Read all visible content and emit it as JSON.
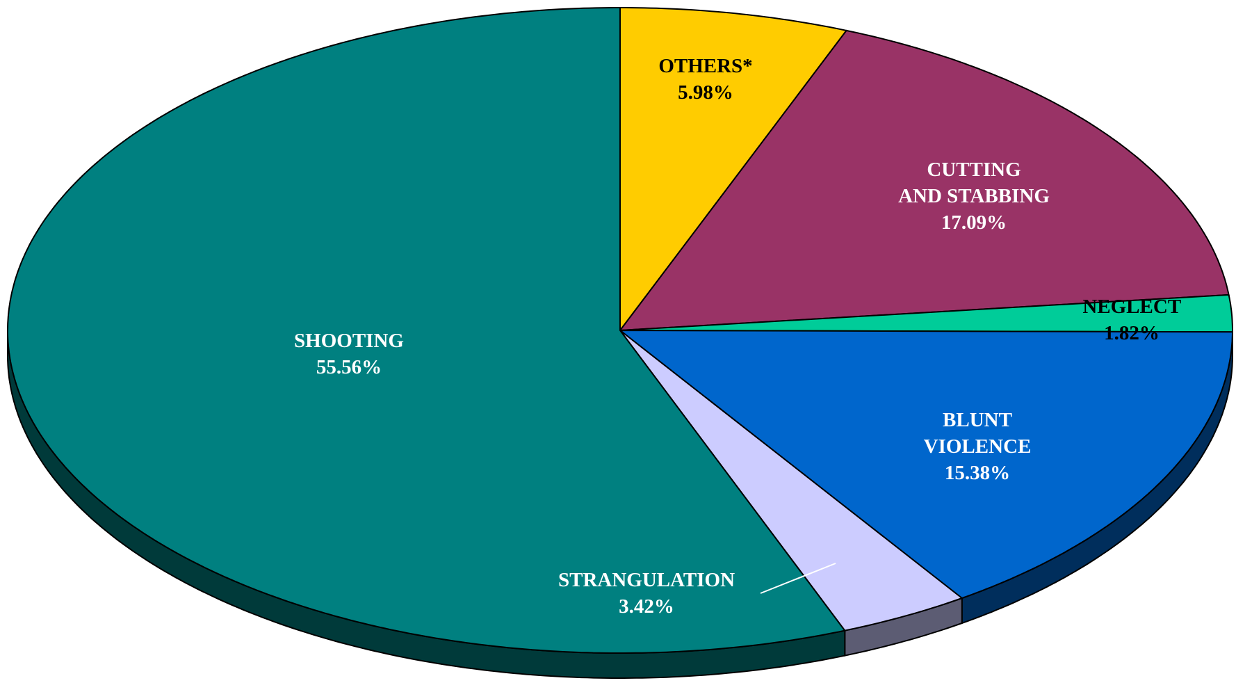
{
  "chart_data": {
    "type": "pie",
    "categories": [
      "OTHERS*",
      "CUTTING\nAND STABBING",
      "NEGLECT",
      "BLUNT\nVIOLENCE",
      "STRANGULATION",
      "SHOOTING"
    ],
    "values": [
      5.98,
      17.09,
      1.82,
      15.38,
      3.42,
      55.56
    ],
    "value_labels": [
      "5.98%",
      "17.09%",
      "1.82%",
      "15.38%",
      "3.42%",
      "55.56%"
    ],
    "colors": [
      "#ffcc00",
      "#993366",
      "#00cc99",
      "#0066cc",
      "#ccccff",
      "#008080"
    ]
  }
}
